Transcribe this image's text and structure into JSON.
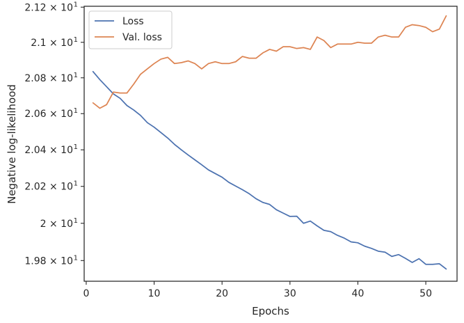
{
  "chart_data": {
    "type": "line",
    "title": "",
    "xlabel": "Epochs",
    "ylabel": "Negative log-likelihood",
    "xlim": [
      -0.3,
      54.6
    ],
    "ylim": [
      19.69,
      21.205
    ],
    "x_ticks": [
      0,
      10,
      20,
      30,
      40,
      50
    ],
    "x_tick_labels": [
      "0",
      "10",
      "20",
      "30",
      "40",
      "50"
    ],
    "y_ticks": [
      19.8,
      20.0,
      20.2,
      20.4,
      20.6,
      20.8,
      21.0,
      21.2
    ],
    "y_tick_labels": [
      {
        "base": "1.98 × 10",
        "exp": "1"
      },
      {
        "base": "2 × 10",
        "exp": "1"
      },
      {
        "base": "2.02 × 10",
        "exp": "1"
      },
      {
        "base": "2.04 × 10",
        "exp": "1"
      },
      {
        "base": "2.06 × 10",
        "exp": "1"
      },
      {
        "base": "2.08 × 10",
        "exp": "1"
      },
      {
        "base": "2.1 × 10",
        "exp": "1"
      },
      {
        "base": "2.12 × 10",
        "exp": "1"
      }
    ],
    "y_scale": "log",
    "grid": false,
    "legend_position": "top-left",
    "x": [
      1,
      2,
      3,
      4,
      5,
      6,
      7,
      8,
      9,
      10,
      11,
      12,
      13,
      14,
      15,
      16,
      17,
      18,
      19,
      20,
      21,
      22,
      23,
      24,
      25,
      26,
      27,
      28,
      29,
      30,
      31,
      32,
      33,
      34,
      35,
      36,
      37,
      38,
      39,
      40,
      41,
      42,
      43,
      44,
      45,
      46,
      47,
      48,
      49,
      50,
      51,
      52,
      53
    ],
    "series": [
      {
        "name": "Loss",
        "color": "#4c72b0",
        "values": [
          20.835,
          20.79,
          20.75,
          20.71,
          20.685,
          20.645,
          20.62,
          20.59,
          20.55,
          20.525,
          20.495,
          20.465,
          20.43,
          20.4,
          20.372,
          20.345,
          20.318,
          20.29,
          20.27,
          20.25,
          20.222,
          20.202,
          20.182,
          20.16,
          20.133,
          20.113,
          20.102,
          20.073,
          20.055,
          20.037,
          20.038,
          20.0,
          20.012,
          19.986,
          19.962,
          19.955,
          19.935,
          19.92,
          19.9,
          19.895,
          19.877,
          19.865,
          19.85,
          19.845,
          19.822,
          19.832,
          19.812,
          19.79,
          19.81,
          19.78,
          19.78,
          19.783,
          19.755
        ]
      },
      {
        "name": "Val. loss",
        "color": "#dd8452",
        "values": [
          20.66,
          20.63,
          20.65,
          20.72,
          20.715,
          20.715,
          20.765,
          20.82,
          20.85,
          20.88,
          20.905,
          20.915,
          20.88,
          20.885,
          20.895,
          20.88,
          20.85,
          20.88,
          20.89,
          20.88,
          20.88,
          20.89,
          20.92,
          20.91,
          20.91,
          20.94,
          20.96,
          20.95,
          20.975,
          20.975,
          20.965,
          20.97,
          20.96,
          21.03,
          21.01,
          20.97,
          20.99,
          20.99,
          20.99,
          21.0,
          20.995,
          20.995,
          21.03,
          21.04,
          21.03,
          21.03,
          21.085,
          21.1,
          21.095,
          21.085,
          21.06,
          21.075,
          21.15
        ]
      }
    ]
  }
}
